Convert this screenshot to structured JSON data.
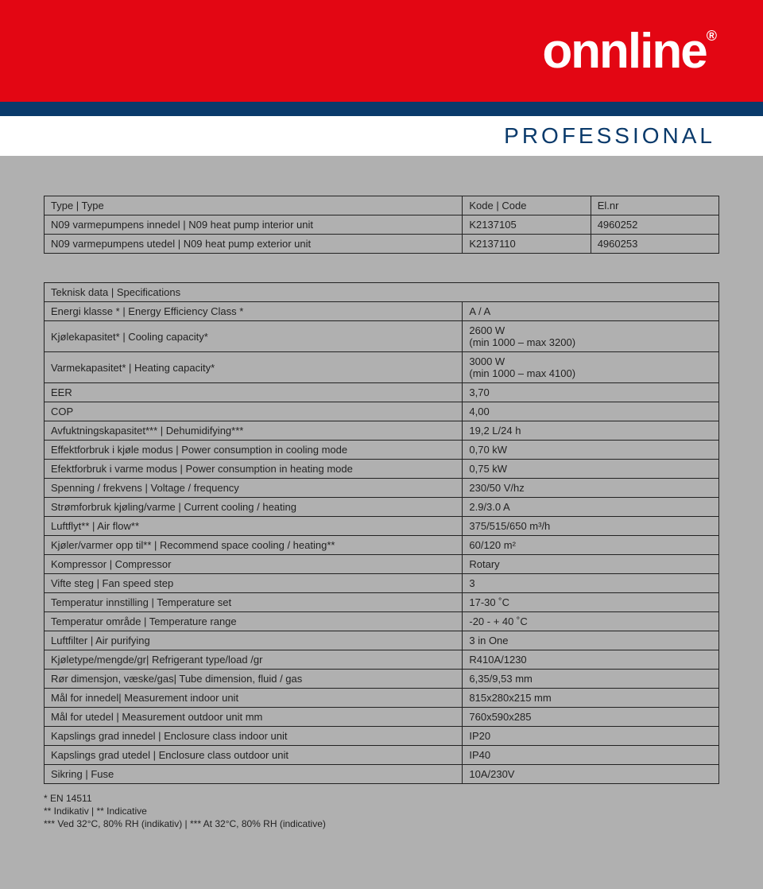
{
  "header": {
    "logo": "onnline",
    "registered": "®",
    "subbrand": "PROFESSIONAL"
  },
  "codesTable": {
    "header": {
      "col1": "Type | Type",
      "col2": "Kode | Code",
      "col3": "El.nr"
    },
    "rows": [
      {
        "c1": "N09 varmepumpens innedel | N09 heat pump interior unit",
        "c2": "K2137105",
        "c3": "4960252"
      },
      {
        "c1": "N09 varmepumpens utedel | N09 heat pump exterior unit",
        "c2": "K2137110",
        "c3": "4960253"
      }
    ]
  },
  "specTitle": "Teknisk data | Specifications",
  "specs": [
    {
      "label": "Energi klasse * | Energy Efficiency Class *",
      "value": "A / A"
    },
    {
      "label": "Kjølekapasitet* | Cooling capacity*",
      "value": "2600 W\n(min 1000 – max 3200)"
    },
    {
      "label": "Varmekapasitet* | Heating capacity*",
      "value": "3000 W\n(min 1000 – max 4100)"
    },
    {
      "label": "EER",
      "value": "3,70"
    },
    {
      "label": "COP",
      "value": "4,00"
    },
    {
      "label": "Avfuktningskapasitet*** | Dehumidifying***",
      "value": "19,2 L/24 h"
    },
    {
      "label": "Effektforbruk i kjøle modus | Power consumption in cooling mode",
      "value": "0,70 kW"
    },
    {
      "label": "Efektforbruk i varme modus | Power consumption in heating mode",
      "value": "0,75 kW"
    },
    {
      "label": "Spenning / frekvens | Voltage / frequency",
      "value": "230/50 V/hz"
    },
    {
      "label": "Strømforbruk kjøling/varme | Current cooling / heating",
      "value": "2.9/3.0 A"
    },
    {
      "label": "Luftflyt** | Air flow**",
      "value": "375/515/650 m³/h"
    },
    {
      "label": "Kjøler/varmer opp til** | Recommend space cooling / heating**",
      "value": "60/120 m²"
    },
    {
      "label": "Kompressor | Compressor",
      "value": "Rotary"
    },
    {
      "label": "Vifte steg | Fan speed step",
      "value": "3"
    },
    {
      "label": "Temperatur innstilling | Temperature set",
      "value": "17-30 ˚C"
    },
    {
      "label": "Temperatur område | Temperature range",
      "value": "-20 - + 40 ˚C"
    },
    {
      "label": "Luftfilter | Air purifying",
      "value": "3 in One"
    },
    {
      "label": "Kjøletype/mengde/gr| Refrigerant type/load /gr",
      "value": "R410A/1230"
    },
    {
      "label": "Rør dimensjon, væske/gas| Tube dimension, fluid / gas",
      "value": "6,35/9,53 mm"
    },
    {
      "label": "Mål for innedel| Measurement indoor unit",
      "value": "815x280x215 mm"
    },
    {
      "label": "Mål for utedel | Measurement outdoor unit mm",
      "value": "760x590x285"
    },
    {
      "label": "Kapslings grad innedel | Enclosure class indoor unit",
      "value": "IP20"
    },
    {
      "label": "Kapslings grad utedel | Enclosure class outdoor unit",
      "value": "IP40"
    },
    {
      "label": "Sikring | Fuse",
      "value": "10A/230V"
    }
  ],
  "footnotes": {
    "l1": "* EN 14511",
    "l2": "** Indikativ | ** Indicative",
    "l3": "*** Ved 32°C, 80% RH (indikativ) | *** At 32°C, 80% RH (indicative)"
  },
  "colors": {
    "brand_red": "#e30613",
    "brand_blue": "#0a3a6b",
    "page_bg": "#b0b0b0",
    "text": "#222222",
    "border": "#222222"
  }
}
